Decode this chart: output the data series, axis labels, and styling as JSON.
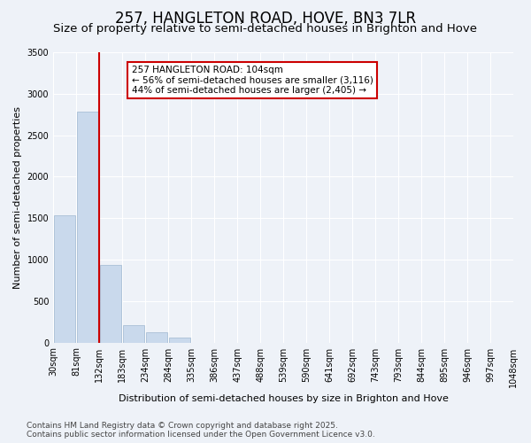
{
  "title": "257, HANGLETON ROAD, HOVE, BN3 7LR",
  "subtitle": "Size of property relative to semi-detached houses in Brighton and Hove",
  "xlabel": "Distribution of semi-detached houses by size in Brighton and Hove",
  "ylabel": "Number of semi-detached properties",
  "bin_labels": [
    "30sqm",
    "81sqm",
    "132sqm",
    "183sqm",
    "234sqm",
    "284sqm",
    "335sqm",
    "386sqm",
    "437sqm",
    "488sqm",
    "539sqm",
    "590sqm",
    "641sqm",
    "692sqm",
    "743sqm",
    "793sqm",
    "844sqm",
    "895sqm",
    "946sqm",
    "997sqm",
    "1048sqm"
  ],
  "values": [
    1530,
    2780,
    940,
    210,
    120,
    55,
    0,
    0,
    0,
    0,
    0,
    0,
    0,
    0,
    0,
    0,
    0,
    0,
    0,
    0
  ],
  "annotation_title": "257 HANGLETON ROAD: 104sqm",
  "annotation_line1": "← 56% of semi-detached houses are smaller (3,116)",
  "annotation_line2": "44% of semi-detached houses are larger (2,405) →",
  "bar_color": "#c9d9ec",
  "bar_edge_color": "#a0b8d0",
  "line_color": "#cc0000",
  "annotation_box_color": "#ffffff",
  "annotation_box_edge": "#cc0000",
  "background_color": "#eef2f8",
  "grid_color": "#ffffff",
  "footer_line1": "Contains HM Land Registry data © Crown copyright and database right 2025.",
  "footer_line2": "Contains public sector information licensed under the Open Government Licence v3.0.",
  "ylim": [
    0,
    3500
  ],
  "yticks": [
    0,
    500,
    1000,
    1500,
    2000,
    2500,
    3000,
    3500
  ],
  "title_fontsize": 12,
  "subtitle_fontsize": 9.5,
  "label_fontsize": 8,
  "tick_fontsize": 7,
  "footer_fontsize": 6.5,
  "red_line_x": 1.5
}
